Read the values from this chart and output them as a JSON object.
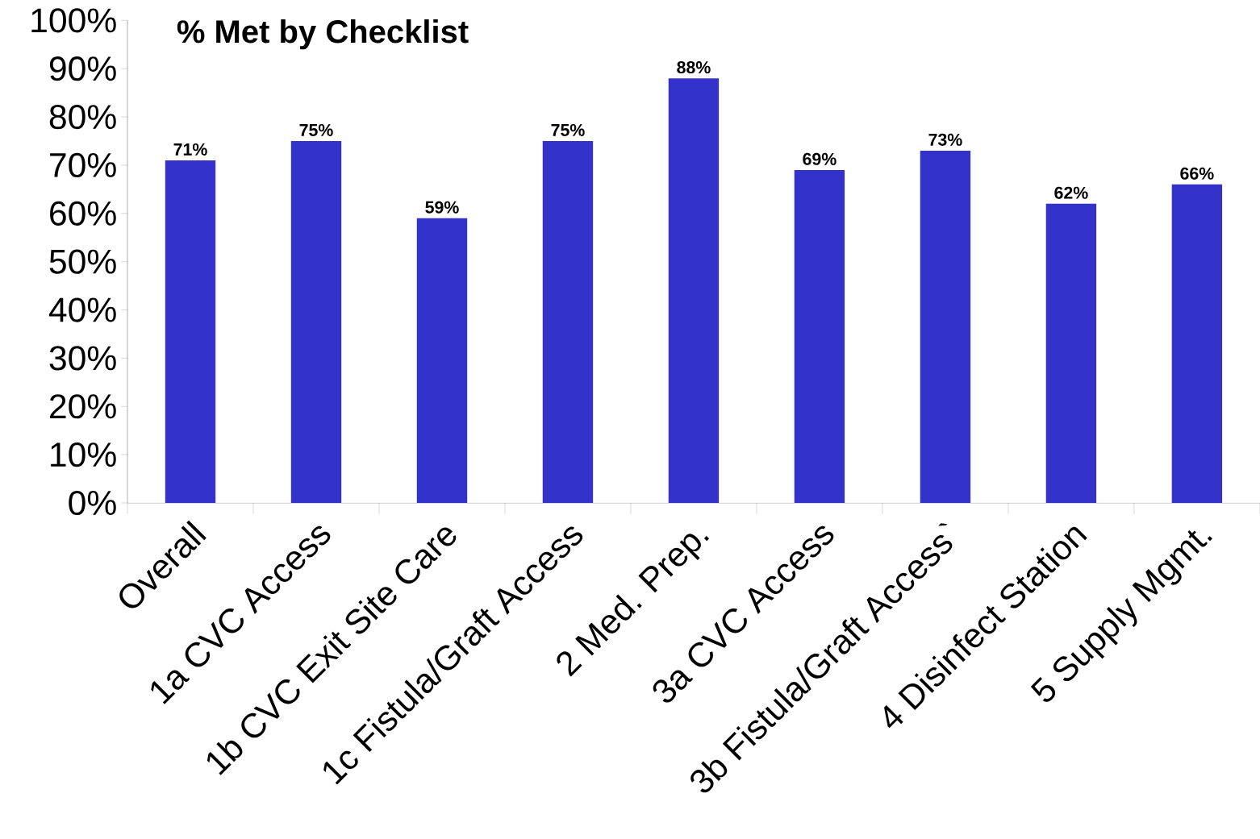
{
  "chart_data": {
    "type": "bar",
    "title": "% Met by Checklist",
    "categories": [
      "Overall",
      "1a CVC Access",
      "1b CVC Exit Site Care",
      "1c Fistula/Graft Access",
      "2 Med. Prep.",
      "3a CVC Access",
      "3b Fistula/Graft Access`",
      "4 Disinfect Station",
      "5 Supply Mgmt."
    ],
    "values": [
      71,
      75,
      59,
      75,
      88,
      69,
      73,
      62,
      66
    ],
    "value_labels": [
      "71%",
      "75%",
      "59%",
      "75%",
      "88%",
      "69%",
      "73%",
      "62%",
      "66%"
    ],
    "color": "#3333cc",
    "ylim": [
      0,
      100
    ],
    "yticks": [
      {
        "value": 0,
        "label": "0%"
      },
      {
        "value": 10,
        "label": "10%"
      },
      {
        "value": 20,
        "label": "20%"
      },
      {
        "value": 30,
        "label": "30%"
      },
      {
        "value": 40,
        "label": "40%"
      },
      {
        "value": 50,
        "label": "50%"
      },
      {
        "value": 60,
        "label": "60%"
      },
      {
        "value": 70,
        "label": "70%"
      },
      {
        "value": 80,
        "label": "80%"
      },
      {
        "value": 90,
        "label": "90%"
      },
      {
        "value": 100,
        "label": "100%"
      }
    ],
    "grid": false
  }
}
